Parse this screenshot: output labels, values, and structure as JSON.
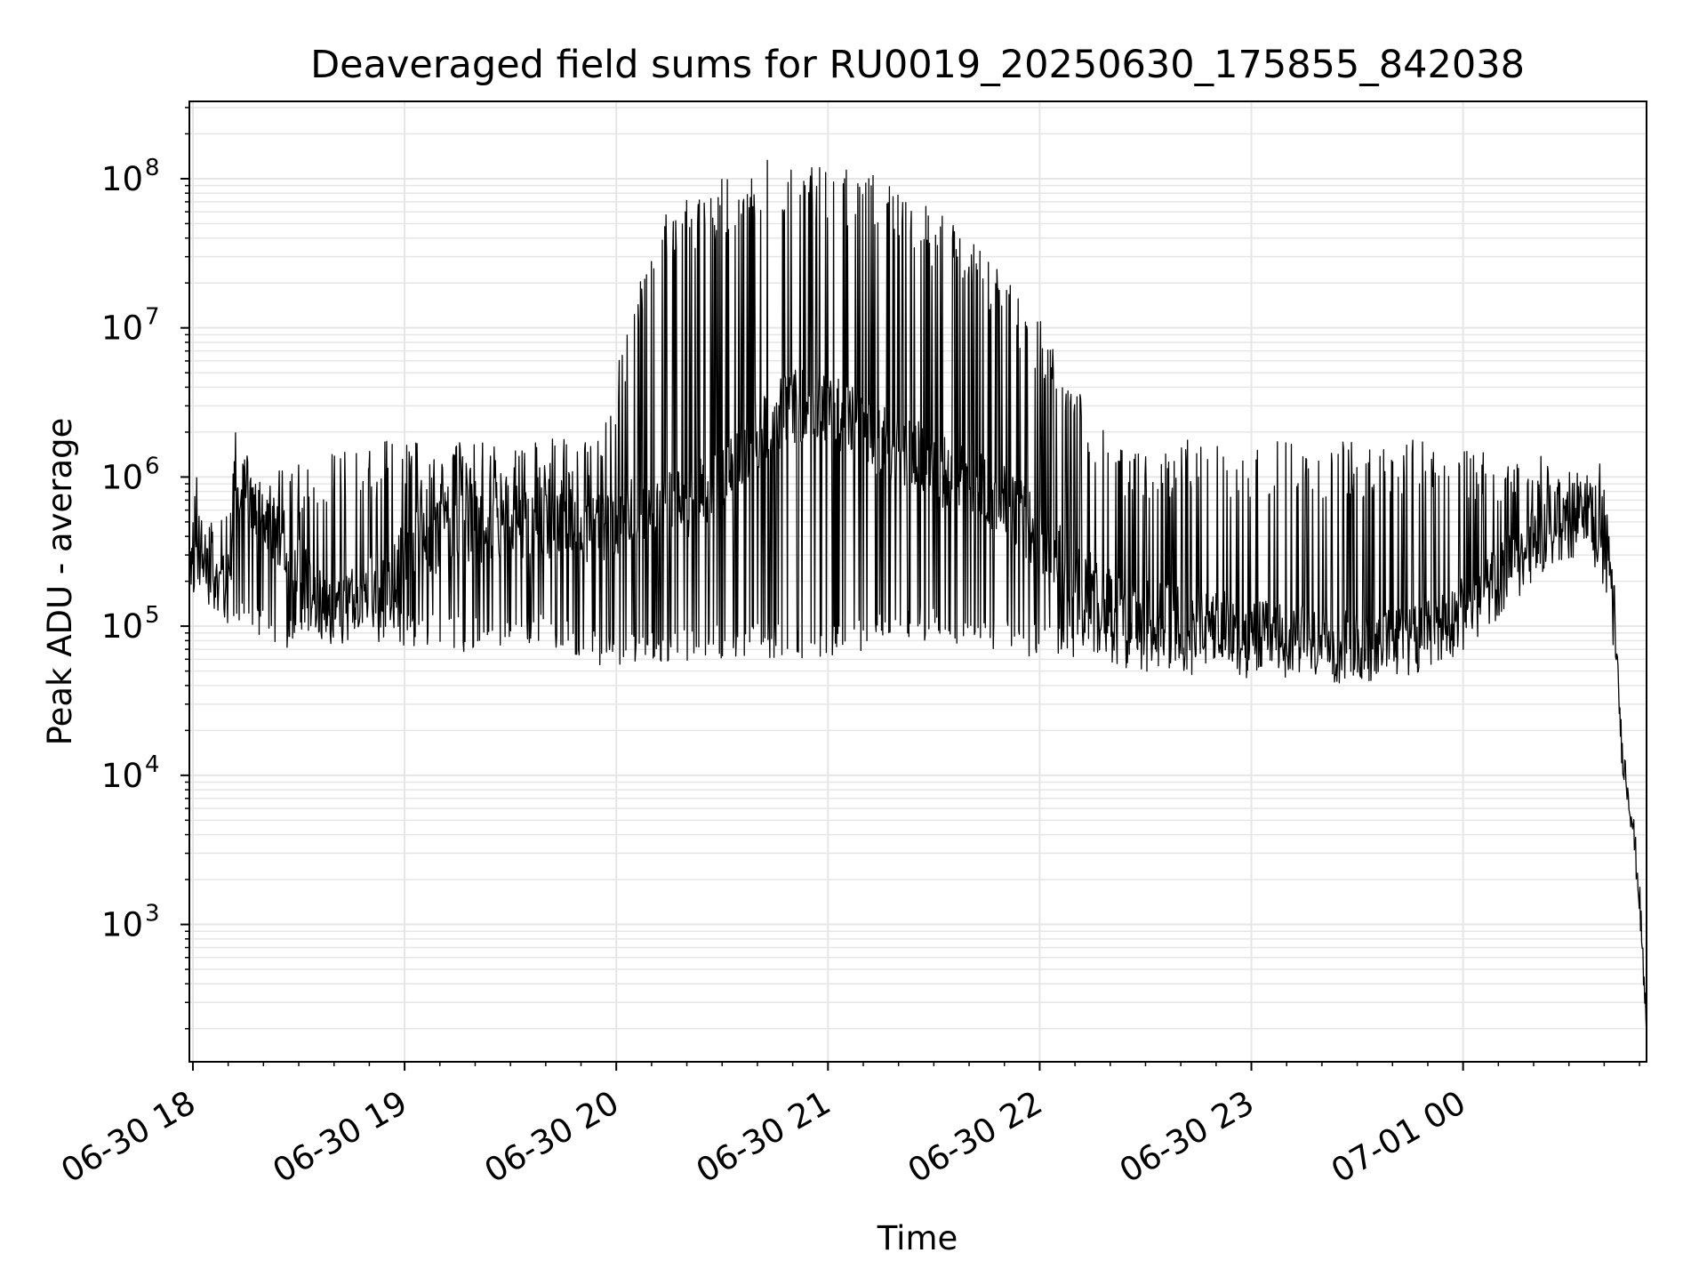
{
  "chart_data": {
    "type": "line",
    "title": "Deaveraged field sums for RU0019_20250630_175855_842038",
    "xlabel": "Time",
    "ylabel": "Peak ADU - average",
    "yscale": "log",
    "ylim": [
      120,
      330000000
    ],
    "xlim": [
      "06-30 17:59",
      "07-01 00:52"
    ],
    "grid": true,
    "legend": "none",
    "colors": {
      "line": "#000000",
      "grid": "#e6e6e6",
      "axes": "#000000",
      "background": "#ffffff"
    },
    "x_ticks": [
      {
        "t": "06-30 18:00",
        "label": "06-30 18"
      },
      {
        "t": "06-30 19:00",
        "label": "06-30 19"
      },
      {
        "t": "06-30 20:00",
        "label": "06-30 20"
      },
      {
        "t": "06-30 21:00",
        "label": "06-30 21"
      },
      {
        "t": "06-30 22:00",
        "label": "06-30 22"
      },
      {
        "t": "06-30 23:00",
        "label": "06-30 23"
      },
      {
        "t": "07-01 00:00",
        "label": "07-01 00"
      }
    ],
    "y_ticks": [
      {
        "value": 1000,
        "base": "10",
        "exp": "3"
      },
      {
        "value": 10000,
        "base": "10",
        "exp": "4"
      },
      {
        "value": 100000,
        "base": "10",
        "exp": "5"
      },
      {
        "value": 1000000,
        "base": "10",
        "exp": "6"
      },
      {
        "value": 10000000,
        "base": "10",
        "exp": "7"
      },
      {
        "value": 100000000,
        "base": "10",
        "exp": "8"
      }
    ],
    "series": [
      {
        "x": [
          "06-30 17:59",
          "06-30 18:00",
          "06-30 18:01",
          "06-30 18:02",
          "06-30 18:04",
          "06-30 18:05",
          "06-30 18:07",
          "06-30 18:08",
          "06-30 18:10",
          "06-30 18:12",
          "06-30 18:15",
          "06-30 18:20",
          "06-30 18:25",
          "06-30 18:30",
          "06-30 18:35",
          "06-30 18:40",
          "06-30 18:45",
          "06-30 18:50",
          "06-30 18:55",
          "06-30 19:00",
          "06-30 19:10",
          "06-30 19:20",
          "06-30 19:30",
          "06-30 19:40",
          "06-30 19:50",
          "06-30 20:00",
          "06-30 20:10",
          "06-30 20:20",
          "06-30 20:30",
          "06-30 20:35",
          "06-30 20:40",
          "06-30 20:45",
          "06-30 20:50",
          "06-30 20:55",
          "06-30 21:00",
          "06-30 21:05",
          "06-30 21:10",
          "06-30 21:15",
          "06-30 21:20",
          "06-30 21:30",
          "06-30 21:40",
          "06-30 21:50",
          "06-30 22:00",
          "06-30 22:10",
          "06-30 22:20",
          "06-30 22:30",
          "06-30 22:40",
          "06-30 22:50",
          "06-30 23:00",
          "06-30 23:10",
          "06-30 23:20",
          "06-30 23:30",
          "06-30 23:40",
          "06-30 23:50",
          "07-01 00:00",
          "07-01 00:10",
          "07-01 00:20",
          "07-01 00:30",
          "07-01 00:35",
          "07-01 00:38",
          "07-01 00:40",
          "07-01 00:43",
          "07-01 00:45",
          "07-01 00:48",
          "07-01 00:50",
          "07-01 00:52"
        ],
        "y": [
          200000,
          400000,
          600000,
          350000,
          300000,
          250000,
          220000,
          200000,
          180000,
          1200000,
          900000,
          600000,
          400000,
          250000,
          150000,
          120000,
          150000,
          180000,
          170000,
          300000,
          400000,
          450000,
          500000,
          500000,
          450000,
          500000,
          600000,
          700000,
          900000,
          1500000,
          2000000,
          2500000,
          3000000,
          3000000,
          2800000,
          2500000,
          2000000,
          1800000,
          1500000,
          1200000,
          900000,
          700000,
          400000,
          200000,
          150000,
          120000,
          110000,
          100000,
          85000,
          80000,
          75000,
          70000,
          75000,
          90000,
          120000,
          200000,
          350000,
          600000,
          700000,
          800000,
          600000,
          100000,
          15000,
          5000,
          1500,
          200
        ],
        "envelope_upper": [
          400000,
          600000,
          1300000,
          1700000,
          1800000,
          1800000,
          1800000,
          1800000,
          60000000,
          100000000,
          150000000,
          120000000,
          100000000,
          40000000,
          12000000,
          5000000,
          1800000,
          1800000,
          1800000,
          1800000,
          1800000,
          1800000,
          1500000,
          1000000,
          150000
        ],
        "envelope_lower": [
          150000,
          120000,
          70000,
          80000,
          70000,
          65000,
          70000,
          55000,
          55000,
          60000,
          60000,
          60000,
          80000,
          70000,
          60000,
          60000,
          55000,
          45000,
          45000,
          50000,
          80000,
          100000,
          250000,
          300000,
          150000
        ],
        "envelope_x": [
          "06-30 17:59",
          "06-30 18:10",
          "06-30 18:25",
          "06-30 18:40",
          "06-30 19:00",
          "06-30 19:20",
          "06-30 19:40",
          "06-30 19:55",
          "06-30 20:10",
          "06-30 20:30",
          "06-30 20:45",
          "06-30 21:00",
          "06-30 21:20",
          "06-30 21:40",
          "06-30 22:00",
          "06-30 22:10",
          "06-30 22:20",
          "06-30 22:40",
          "06-30 23:00",
          "06-30 23:20",
          "06-30 23:40",
          "07-01 00:00",
          "07-01 00:20",
          "07-01 00:35",
          "07-01 00:43"
        ]
      }
    ]
  }
}
